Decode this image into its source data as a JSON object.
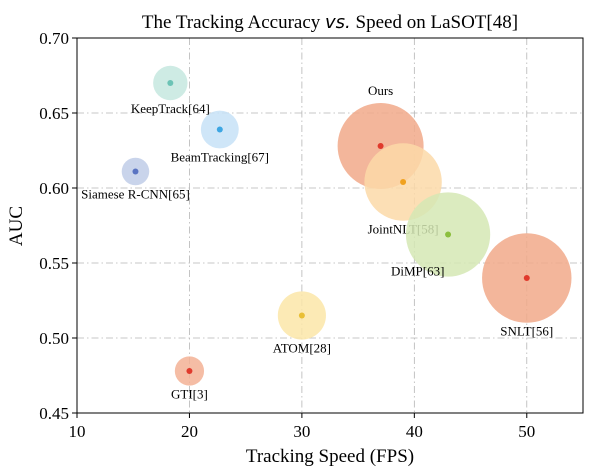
{
  "chart_data": {
    "type": "scatter",
    "title_prefix": "The Tracking Accuracy ",
    "title_vs": "vs.",
    "title_suffix": " Speed on LaSOT[48]",
    "xlabel": "Tracking Speed (FPS)",
    "ylabel": "AUC",
    "xlim": [
      10,
      55
    ],
    "ylim": [
      0.45,
      0.7
    ],
    "xticks": [
      10,
      20,
      30,
      40,
      50
    ],
    "yticks": [
      "0.45",
      "0.50",
      "0.55",
      "0.60",
      "0.65",
      "0.70"
    ],
    "grid": true,
    "points": [
      {
        "label": "KeepTrack[64]",
        "x": 18.3,
        "y": 0.67,
        "size": 2.0,
        "bubble": "#c5e7df",
        "dot": "#6cc3b5",
        "label_pos": "below"
      },
      {
        "label": "BeamTracking[67]",
        "x": 22.7,
        "y": 0.639,
        "size": 2.2,
        "bubble": "#c7e2f7",
        "dot": "#3da6e3",
        "label_pos": "below"
      },
      {
        "label": "Siamese R-CNN[65]",
        "x": 15.2,
        "y": 0.611,
        "size": 1.6,
        "bubble": "#c0cce8",
        "dot": "#5a74c2",
        "label_pos": "below"
      },
      {
        "label": "Ours",
        "x": 37.0,
        "y": 0.628,
        "size": 5.0,
        "bubble": "#f1a98a",
        "dot": "#e03a2c",
        "label_pos": "above"
      },
      {
        "label": "JointNLT[58]",
        "x": 39.0,
        "y": 0.604,
        "size": 4.5,
        "bubble": "#fbd9a8",
        "dot": "#f0a21f",
        "label_pos": "below"
      },
      {
        "label": "DiMP[63]",
        "x": 43.0,
        "y": 0.569,
        "size": 4.9,
        "bubble": "#d5e8b4",
        "dot": "#8cbf3e",
        "label_pos": "below-left"
      },
      {
        "label": "SNLT[56]",
        "x": 50.0,
        "y": 0.54,
        "size": 5.2,
        "bubble": "#f1a98a",
        "dot": "#e03a2c",
        "label_pos": "below"
      },
      {
        "label": "ATOM[28]",
        "x": 30.0,
        "y": 0.515,
        "size": 2.8,
        "bubble": "#fbe6a8",
        "dot": "#e9bf35",
        "label_pos": "below"
      },
      {
        "label": "GTI[3]",
        "x": 20.0,
        "y": 0.478,
        "size": 1.7,
        "bubble": "#f3b295",
        "dot": "#e03a2c",
        "label_pos": "below"
      }
    ]
  }
}
